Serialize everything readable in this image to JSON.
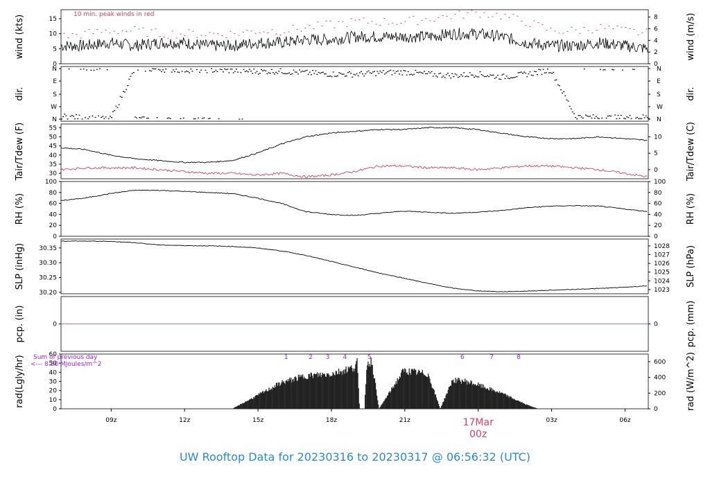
{
  "title": "UW Rooftop Data for 20230316  to  20230317 @ 06:56:32  (UTC)",
  "colors": {
    "accent_red": "#d6405f",
    "accent_purple": "#a020f0",
    "title_blue": "#2a8ad6",
    "line": "#000000"
  },
  "x_axis": {
    "ticks": [
      "09z",
      "12z",
      "15z",
      "18z",
      "21z",
      "03z",
      "06z"
    ],
    "day_label": "17Mar",
    "day_sub": "00z"
  },
  "panels": {
    "wind": {
      "ylabel_left": "wind (kts)",
      "ylabel_right": "wind (m/s)",
      "note": "10 min. peak winds in red",
      "left_ticks": [
        "0",
        "5",
        "10",
        "15"
      ],
      "right_ticks": [
        "0",
        "2",
        "4",
        "6",
        "8"
      ]
    },
    "dir": {
      "ylabel_left": "dir.",
      "ylabel_right": "dir.",
      "ticks": [
        "N",
        "W",
        "S",
        "E",
        "N"
      ]
    },
    "temp": {
      "ylabel_left": "Tair/Tdew (F)",
      "ylabel_right": "Tair/Tdew (C)",
      "left_ticks": [
        "30",
        "35",
        "40",
        "45",
        "50",
        "55"
      ],
      "right_ticks": [
        "0",
        "5",
        "10"
      ]
    },
    "rh": {
      "ylabel_left": "RH (%)",
      "ylabel_right": "RH (%)",
      "left_ticks": [
        "0",
        "20",
        "40",
        "60",
        "80",
        "100"
      ],
      "right_ticks": [
        "0",
        "20",
        "40",
        "60",
        "80",
        "100"
      ]
    },
    "slp": {
      "ylabel_left": "SLP (inHg)",
      "ylabel_right": "SLP (hPa)",
      "left_ticks": [
        "30.20",
        "30.25",
        "30.30",
        "30.35"
      ],
      "right_ticks": [
        "1023",
        "1024",
        "1025",
        "1026",
        "1027",
        "1028"
      ]
    },
    "pcp": {
      "ylabel_left": "pcp. (in)",
      "ylabel_right": "pcp. (mm)",
      "left_ticks": [
        "0"
      ],
      "right_ticks": [
        "0"
      ]
    },
    "rad": {
      "ylabel_left": "rad(Lgly/hr)",
      "ylabel_right": "rad (W/m^2)",
      "left_ticks": [
        "0",
        "10",
        "20",
        "30",
        "40",
        "50",
        "60"
      ],
      "right_ticks": [
        "0",
        "200",
        "400",
        "600"
      ],
      "note1": "Sum of previous day",
      "note2": "<--- 8.50 MJoules/m^2",
      "markers": [
        "1",
        "2",
        "3",
        "4",
        "5",
        "6",
        "7",
        "8"
      ]
    }
  },
  "chart_data": {
    "type": "line",
    "x_unit": "hours UTC since 20230316 06:56",
    "x_range_hours": [
      0,
      24
    ],
    "wind_kts": {
      "x": [
        0,
        1,
        2,
        3,
        4,
        5,
        6,
        7,
        8,
        9,
        10,
        11,
        12,
        13,
        14,
        15,
        16,
        17,
        18,
        19,
        20,
        21,
        22,
        23,
        24
      ],
      "values": [
        6,
        6,
        7,
        6,
        7,
        7,
        6,
        6,
        7,
        7,
        8,
        8,
        9,
        9,
        9,
        9,
        10,
        10,
        9,
        7,
        6,
        6,
        7,
        6,
        5
      ],
      "peak_values": [
        9,
        10,
        11,
        11,
        10,
        10,
        10,
        10,
        11,
        11,
        12,
        13,
        14,
        14,
        14,
        15,
        16,
        17,
        16,
        14,
        11,
        11,
        12,
        11,
        10
      ]
    },
    "dir_deg": {
      "x": [
        0,
        1,
        2,
        3,
        4,
        5,
        6,
        7,
        8,
        9,
        10,
        11,
        12,
        13,
        14,
        15,
        16,
        17,
        18,
        19,
        20,
        21,
        22,
        23,
        24
      ],
      "values": [
        20,
        10,
        0,
        360,
        355,
        350,
        350,
        345,
        340,
        340,
        330,
        320,
        320,
        330,
        335,
        320,
        310,
        320,
        300,
        320,
        350,
        20,
        10,
        10,
        15
      ]
    },
    "tair_f": {
      "x": [
        0,
        1,
        2,
        3,
        4,
        5,
        6,
        7,
        8,
        9,
        10,
        11,
        12,
        13,
        14,
        15,
        16,
        17,
        18,
        19,
        20,
        21,
        22,
        23,
        24
      ],
      "values": [
        44,
        43,
        40,
        38,
        37,
        36,
        36,
        37,
        41,
        46,
        50,
        52,
        53,
        54,
        54,
        55,
        55,
        54,
        52,
        50,
        49,
        49,
        50,
        49,
        48
      ]
    },
    "tdew_f": {
      "x": [
        0,
        1,
        2,
        3,
        4,
        5,
        6,
        7,
        8,
        9,
        10,
        11,
        12,
        13,
        14,
        15,
        16,
        17,
        18,
        19,
        20,
        21,
        22,
        23,
        24
      ],
      "values": [
        32,
        33,
        33,
        33,
        32,
        31,
        30,
        30,
        29,
        30,
        28,
        29,
        31,
        34,
        34,
        33,
        33,
        32,
        33,
        34,
        34,
        33,
        32,
        30,
        28
      ]
    },
    "rh_pct": {
      "x": [
        0,
        1,
        2,
        3,
        4,
        5,
        6,
        7,
        8,
        9,
        10,
        11,
        12,
        13,
        14,
        15,
        16,
        17,
        18,
        19,
        20,
        21,
        22,
        23,
        24
      ],
      "values": [
        65,
        70,
        78,
        84,
        84,
        82,
        80,
        78,
        70,
        60,
        45,
        40,
        38,
        42,
        46,
        44,
        42,
        44,
        47,
        52,
        55,
        56,
        55,
        50,
        45
      ]
    },
    "slp_inhg": {
      "x": [
        0,
        1,
        2,
        3,
        4,
        5,
        6,
        7,
        8,
        9,
        10,
        11,
        12,
        13,
        14,
        15,
        16,
        17,
        18,
        19,
        20,
        21,
        22,
        23,
        24
      ],
      "values": [
        30.373,
        30.373,
        30.372,
        30.368,
        30.36,
        30.358,
        30.357,
        30.355,
        30.35,
        30.34,
        30.325,
        30.305,
        30.285,
        30.265,
        30.248,
        30.23,
        30.214,
        30.205,
        30.202,
        30.204,
        30.207,
        30.21,
        30.213,
        30.217,
        30.222
      ]
    },
    "pcp_in": {
      "x": [
        0,
        24
      ],
      "values": [
        0,
        0
      ]
    },
    "rad_lgly": {
      "x": [
        7,
        8,
        9,
        10,
        11,
        11.5,
        12,
        12.1,
        12.2,
        12.4,
        12.5,
        12.7,
        13,
        14,
        15,
        15.5,
        16,
        16.5,
        17,
        18,
        19,
        19.5
      ],
      "values": [
        0,
        15,
        30,
        38,
        40,
        44,
        48,
        55,
        0,
        0,
        52,
        55,
        0,
        44,
        40,
        0,
        33,
        32,
        28,
        18,
        5,
        0
      ]
    }
  }
}
